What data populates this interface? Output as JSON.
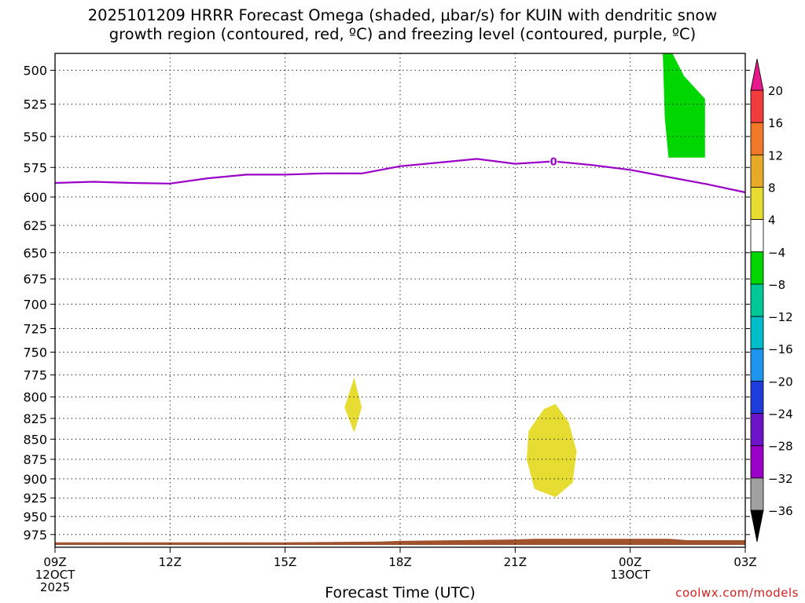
{
  "title_line1": "2025101209 HRRR Forecast Omega (shaded, μbar/s) for KUIN with dendritic snow",
  "title_line2": "growth region (contoured, red, ºC) and freezing level (contoured, purple, ºC)",
  "credit": "coolwx.com/models",
  "colors": {
    "green": "#00d600",
    "yellow": "#e6dc32",
    "purple": "#9b00c8",
    "terrain": "#a0522d"
  },
  "chart_data": {
    "type": "area",
    "title": "2025101209 HRRR Forecast Omega (shaded, μbar/s) for KUIN with dendritic snow growth region (contoured, red, ºC) and freezing level (contoured, purple, ºC)",
    "xlabel": "Forecast Time (UTC)",
    "ylabel": "",
    "x_ticks": [
      {
        "hour": 0,
        "label": "09Z",
        "date": "12OCT",
        "year": "2025"
      },
      {
        "hour": 3,
        "label": "12Z"
      },
      {
        "hour": 6,
        "label": "15Z"
      },
      {
        "hour": 9,
        "label": "18Z"
      },
      {
        "hour": 12,
        "label": "21Z"
      },
      {
        "hour": 15,
        "label": "00Z",
        "date": "13OCT"
      },
      {
        "hour": 18,
        "label": "03Z"
      }
    ],
    "xlim": [
      0,
      18
    ],
    "y_levels": [
      500,
      525,
      550,
      575,
      600,
      625,
      650,
      675,
      700,
      725,
      750,
      775,
      800,
      825,
      850,
      875,
      900,
      925,
      950,
      975
    ],
    "ylim": [
      488,
      993
    ],
    "y_scale": "log-pressure (inverted)",
    "grid": "dotted",
    "colorbar": {
      "labels": [
        "20",
        "16",
        "12",
        "8",
        "4",
        "-4",
        "-8",
        "-12",
        "-16",
        "-20",
        "-24",
        "-28",
        "-32",
        "-36"
      ],
      "colors": [
        "#e6188c",
        "#f03c3c",
        "#f07828",
        "#e6aa28",
        "#e6dc32",
        "#ffffff",
        "#00d600",
        "#00c896",
        "#00bec8",
        "#1e96f0",
        "#1e3cdc",
        "#6e14c8",
        "#9b00c8",
        "#a0a0a0",
        "#000000"
      ]
    },
    "freezing_level": {
      "label": "0",
      "label_hour": 13.0,
      "points": [
        [
          0,
          588
        ],
        [
          1,
          587
        ],
        [
          2,
          588
        ],
        [
          3,
          588.5
        ],
        [
          4,
          584
        ],
        [
          5,
          581
        ],
        [
          6,
          581
        ],
        [
          7,
          580
        ],
        [
          8,
          580
        ],
        [
          9,
          574
        ],
        [
          10,
          571
        ],
        [
          11,
          568
        ],
        [
          12,
          572
        ],
        [
          13,
          570
        ],
        [
          14,
          573
        ],
        [
          15,
          577
        ],
        [
          16,
          583
        ],
        [
          17,
          589
        ],
        [
          18,
          596
        ]
      ]
    },
    "shaded_regions": [
      {
        "name": "green",
        "value_range": "-8 to -4",
        "points": [
          [
            15.85,
            488
          ],
          [
            16.1,
            488
          ],
          [
            16.4,
            504
          ],
          [
            16.95,
            521
          ],
          [
            16.95,
            567
          ],
          [
            16.0,
            567
          ],
          [
            15.9,
            535
          ]
        ]
      },
      {
        "name": "yellow",
        "value_range": "4 to 8",
        "points": [
          [
            7.8,
            778
          ],
          [
            8.0,
            812
          ],
          [
            7.8,
            842
          ],
          [
            7.55,
            812
          ]
        ]
      },
      {
        "name": "yellow",
        "value_range": "4 to 8",
        "points": [
          [
            13.05,
            808
          ],
          [
            13.4,
            830
          ],
          [
            13.6,
            865
          ],
          [
            13.5,
            905
          ],
          [
            13.05,
            924
          ],
          [
            12.5,
            913
          ],
          [
            12.3,
            875
          ],
          [
            12.35,
            840
          ],
          [
            12.75,
            814
          ]
        ]
      }
    ],
    "terrain": {
      "points": [
        [
          0,
          986
        ],
        [
          6,
          986
        ],
        [
          8.5,
          985
        ],
        [
          9,
          984
        ],
        [
          12,
          982
        ],
        [
          12.5,
          981
        ],
        [
          16,
          981
        ],
        [
          16.5,
          983
        ],
        [
          18,
          983
        ]
      ]
    }
  }
}
